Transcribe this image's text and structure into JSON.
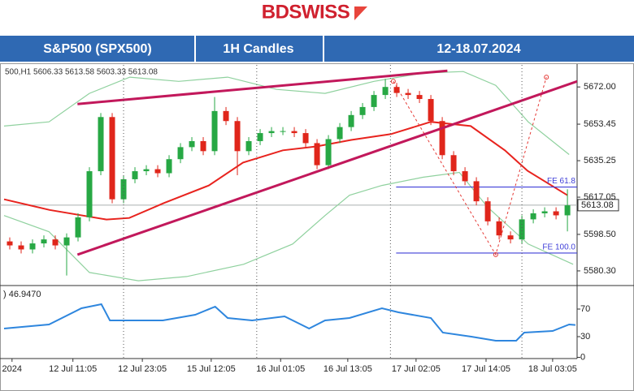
{
  "brand": "BDSWISS",
  "header": {
    "cells": [
      "S&P500 (SPX500)",
      "1H Candles",
      "12-18.07.2024"
    ]
  },
  "chart_data": [
    {
      "type": "candlestick",
      "info": "500,H1  5606.33 5613.58 5603.33 5613.08",
      "x": [
        1,
        3,
        5,
        7,
        9,
        11,
        13,
        15,
        17,
        19,
        21,
        23,
        25,
        27,
        29,
        31,
        33,
        35,
        37,
        39,
        41,
        43,
        45,
        47,
        49,
        51,
        53,
        55,
        57,
        59,
        61,
        63,
        65,
        67,
        69,
        71,
        73,
        75,
        77,
        79,
        81,
        83,
        85,
        87,
        89,
        91,
        93,
        95,
        97,
        99
      ],
      "open": [
        5595,
        5593,
        5591,
        5594,
        5596,
        5593,
        5597,
        5607,
        5630,
        5657,
        5616,
        5626,
        5630,
        5631,
        5629,
        5636,
        5642,
        5645,
        5640,
        5660,
        5655,
        5640,
        5645,
        5649,
        5650,
        5650,
        5649,
        5644,
        5633,
        5646,
        5652,
        5658,
        5662,
        5668,
        5672,
        5669,
        5668,
        5666,
        5655,
        5638,
        5630,
        5625,
        5615,
        5605,
        5598,
        5596,
        5606,
        5609,
        5610,
        5608
      ],
      "high": [
        5597,
        5595,
        5596,
        5598,
        5598,
        5599,
        5609,
        5632,
        5659,
        5659,
        5628,
        5632,
        5633,
        5633,
        5638,
        5644,
        5647,
        5647,
        5667,
        5662,
        5657,
        5647,
        5651,
        5652,
        5652,
        5652,
        5651,
        5646,
        5648,
        5654,
        5660,
        5664,
        5670,
        5676,
        5674,
        5671,
        5670,
        5668,
        5657,
        5640,
        5632,
        5627,
        5617,
        5607,
        5600,
        5608,
        5611,
        5612,
        5612,
        5621
      ],
      "low": [
        5591,
        5589,
        5589,
        5592,
        5591,
        5578,
        5595,
        5605,
        5628,
        5614,
        5614,
        5624,
        5628,
        5627,
        5627,
        5634,
        5640,
        5638,
        5638,
        5653,
        5628,
        5638,
        5643,
        5647,
        5648,
        5647,
        5642,
        5631,
        5631,
        5644,
        5650,
        5656,
        5660,
        5666,
        5667,
        5666,
        5664,
        5653,
        5636,
        5628,
        5623,
        5613,
        5603,
        5596,
        5594,
        5594,
        5604,
        5607,
        5606,
        5600
      ],
      "close": [
        5593,
        5591,
        5594,
        5596,
        5593,
        5597,
        5607,
        5630,
        5657,
        5616,
        5626,
        5630,
        5631,
        5629,
        5636,
        5642,
        5645,
        5640,
        5660,
        5655,
        5640,
        5645,
        5649,
        5650,
        5650,
        5649,
        5644,
        5633,
        5646,
        5652,
        5658,
        5662,
        5668,
        5672,
        5669,
        5668,
        5666,
        5655,
        5638,
        5630,
        5625,
        5615,
        5605,
        5598,
        5596,
        5606,
        5609,
        5610,
        5608,
        5613
      ],
      "up_color": "#27a844",
      "down_color": "#e0261b",
      "xlim": [
        0,
        100.7
      ],
      "ylim": [
        5573.4,
        5683
      ],
      "yticks": [
        {
          "value": 5672,
          "label": "5672.00"
        },
        5653.45,
        5635.25,
        5617.05,
        {
          "value": 5598.5,
          "label": "5598.50"
        },
        {
          "value": 5580.3,
          "label": "5580.30"
        }
      ],
      "last": 5613.08,
      "lines": [
        {
          "color": "#e8231e",
          "width": 2,
          "x": [
            0,
            8,
            18,
            22,
            28,
            36,
            42,
            49,
            55,
            61,
            68,
            75,
            82,
            88,
            92,
            99
          ],
          "values": [
            5616,
            5610.7,
            5605.9,
            5606.7,
            5614,
            5622.9,
            5634.3,
            5640.4,
            5642.4,
            5645.6,
            5648.5,
            5654.6,
            5652.5,
            5640.4,
            5630.2,
            5618
          ]
        },
        {
          "color": "#8fd19e",
          "width": 1.2,
          "x": [
            0,
            7.9,
            15,
            22.1,
            30.7,
            39.3,
            47.9,
            56.4,
            65,
            73.6,
            80.7,
            86.4,
            92.1,
            99.3
          ],
          "values": [
            5652.5,
            5654.6,
            5668.8,
            5676.9,
            5674.8,
            5676.9,
            5670.8,
            5668.8,
            5674.8,
            5678.9,
            5679.7,
            5672.8,
            5654.6,
            5638.3
          ]
        },
        {
          "color": "#8fd19e",
          "width": 1.2,
          "x": [
            0,
            7.9,
            15,
            23.6,
            32.1,
            42.1,
            50.7,
            56.4,
            60.7,
            66.4,
            73.6,
            80,
            85,
            92.1,
            100
          ],
          "values": [
            5607.9,
            5599.8,
            5579.5,
            5575.4,
            5577.5,
            5583.6,
            5593.7,
            5607.9,
            5618,
            5622.9,
            5627,
            5629.4,
            5612,
            5593.7,
            5583.6
          ]
        }
      ],
      "trendlines": [
        {
          "color": "#c2185b",
          "x": [
            12.9,
            77.9
          ],
          "values": [
            5663.5,
            5680.1
          ]
        },
        {
          "color": "#c2185b",
          "x": [
            12.9,
            100.7
          ],
          "values": [
            5588.4,
            5674.8
          ]
        }
      ],
      "zigzag": {
        "color": "#e53935",
        "x": [
          68.4,
          86.4,
          95.3
        ],
        "values": [
          5674.8,
          5588.4,
          5676.9
        ]
      },
      "levels": [
        {
          "value": 5622.1,
          "label": "FE 61.8",
          "color": "#3f3fd8",
          "x": [
            68.9,
            100.7
          ]
        },
        {
          "value": 5589.2,
          "label": "FE 100.0",
          "color": "#3f3fd8",
          "x": [
            68.9,
            100.7
          ]
        }
      ],
      "separators": [
        21,
        44.4,
        67.9,
        91
      ]
    },
    {
      "type": "line",
      "title": ") 46.9470",
      "color": "#2e86de",
      "x": [
        0,
        7.9,
        13.6,
        17.1,
        18.6,
        20.7,
        27.9,
        33.6,
        37.1,
        39.3,
        43.6,
        49.3,
        53.6,
        56.4,
        60.7,
        66.4,
        69.3,
        75,
        77.1,
        82.1,
        86.4,
        90,
        91.4,
        96.4,
        99.3,
        100.4
      ],
      "values": [
        41.8,
        47.6,
        71.2,
        77.1,
        53.5,
        53.5,
        53.5,
        61.8,
        73.5,
        57.1,
        53.5,
        59.4,
        41.8,
        53.5,
        57.1,
        71.2,
        65.3,
        57.1,
        35.9,
        30,
        24.1,
        24.1,
        35.9,
        38.2,
        47.6,
        46.9
      ],
      "xlim": [
        0,
        100.7
      ],
      "ylim": [
        0,
        100
      ],
      "yticks": [
        70,
        30,
        0
      ],
      "xticks": [
        {
          "value": 1.4,
          "label": "2024"
        },
        {
          "value": 12.1,
          "label": "12 Jul 11:05"
        },
        {
          "value": 24.3,
          "label": "12 Jul 23:05"
        },
        {
          "value": 36.4,
          "label": "15 Jul 12:05"
        },
        {
          "value": 48.6,
          "label": "16 Jul 01:05"
        },
        {
          "value": 60.4,
          "label": "16 Jul 13:05"
        },
        {
          "value": 72.4,
          "label": "17 Jul 02:05"
        },
        {
          "value": 84.7,
          "label": "17 Jul 14:05"
        },
        {
          "value": 96.4,
          "label": "18 Jul 03:05"
        }
      ]
    }
  ]
}
